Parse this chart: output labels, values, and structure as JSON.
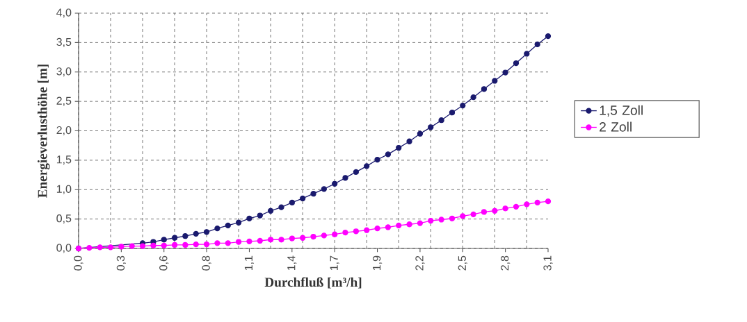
{
  "chart_data": {
    "type": "line",
    "xlabel": "Durchfluß [m³/h]",
    "ylabel": "Energieverlusthöhe [m]",
    "categories": [
      "0,0",
      null,
      null,
      null,
      "0,3",
      null,
      null,
      null,
      "0,6",
      null,
      null,
      null,
      "0,8",
      null,
      null,
      null,
      "1,1",
      null,
      null,
      null,
      "1,4",
      null,
      null,
      null,
      "1,7",
      null,
      null,
      null,
      "1,9",
      null,
      null,
      null,
      "2,2",
      null,
      null,
      null,
      "2,5",
      null,
      null,
      null,
      "2,8",
      null,
      null,
      null,
      "3,1"
    ],
    "series": [
      {
        "name": "1,5 Zoll",
        "color": "#1a1a6e",
        "values": [
          0,
          null,
          null,
          null,
          null,
          null,
          0.09,
          0.11,
          0.15,
          0.18,
          0.21,
          0.25,
          0.28,
          0.34,
          0.39,
          0.44,
          0.51,
          0.56,
          0.64,
          0.7,
          0.78,
          0.85,
          0.93,
          1.01,
          1.1,
          1.2,
          1.3,
          1.4,
          1.51,
          1.6,
          1.71,
          1.82,
          1.95,
          2.06,
          2.18,
          2.31,
          2.43,
          2.57,
          2.71,
          2.85,
          2.99,
          3.15,
          3.31,
          3.47,
          3.61
        ]
      },
      {
        "name": "2 Zoll",
        "color": "#ff00ff",
        "values": [
          0,
          0.01,
          0.02,
          0.02,
          0.03,
          0.04,
          0.04,
          0.05,
          0.05,
          0.06,
          0.06,
          0.07,
          0.07,
          0.09,
          0.09,
          0.11,
          0.12,
          0.13,
          0.15,
          0.15,
          0.17,
          0.18,
          0.2,
          0.22,
          0.24,
          0.27,
          0.29,
          0.31,
          0.34,
          0.36,
          0.39,
          0.41,
          0.43,
          0.47,
          0.49,
          0.51,
          0.55,
          0.58,
          0.62,
          0.64,
          0.68,
          0.71,
          0.75,
          0.78,
          0.8
        ]
      }
    ],
    "ylim": [
      0,
      4
    ],
    "yticks": [
      {
        "value": 0,
        "label": "0,0"
      },
      {
        "value": 0.5,
        "label": "0,5"
      },
      {
        "value": 1,
        "label": "1,0"
      },
      {
        "value": 1.5,
        "label": "1,5"
      },
      {
        "value": 2,
        "label": "2,0"
      },
      {
        "value": 2.5,
        "label": "2,5"
      },
      {
        "value": 3,
        "label": "3,0"
      },
      {
        "value": 3.5,
        "label": "3,5"
      },
      {
        "value": 4,
        "label": "4,0"
      }
    ],
    "grid": true,
    "legend": "right",
    "marker": "circle",
    "line_style": "solid"
  }
}
